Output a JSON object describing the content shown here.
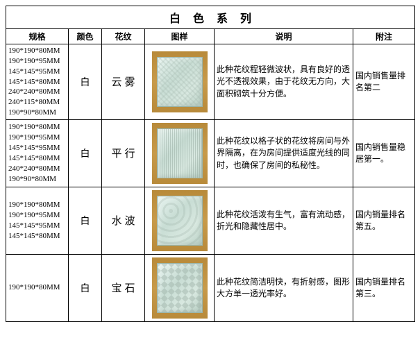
{
  "title": "白色系列",
  "headers": {
    "spec": "规格",
    "color": "颜色",
    "pattern": "花纹",
    "image": "图样",
    "desc": "说明",
    "note": "附注"
  },
  "colWidths": {
    "spec": 90,
    "color": 48,
    "pattern": 62,
    "image": 100,
    "desc": 200,
    "note": 89
  },
  "rows": [
    {
      "specs": "190*190*80MM\n190*190*95MM\n145*145*95MM\n145*145*80MM\n240*240*80MM\n240*115*80MM\n190*90*80MM",
      "color": "白",
      "pattern": "云雾",
      "patternClass": "pattern-cloud",
      "desc": "此种花纹程轻微波状，具有良好的透光不透视效果，由于花纹无方向，大面积砌筑十分方便。",
      "note": "国内销售量排名第二"
    },
    {
      "specs": "190*190*80MM\n190*190*95MM\n145*145*95MM\n145*145*80MM\n240*240*80MM\n190*90*80MM",
      "color": "白",
      "pattern": "平行",
      "patternClass": "pattern-lines",
      "desc": "此种花纹以格子状的花纹将房间与外界隔离，在为房间提供适度光线的同时，也确保了房间的私秘性。",
      "note": "国内销售量稳居第一。"
    },
    {
      "specs": "190*190*80MM\n190*190*95MM\n145*145*95MM\n145*145*80MM",
      "color": "白",
      "pattern": "水波",
      "patternClass": "pattern-wave",
      "desc": "此种花纹活泼有生气，富有流动感，折光和隐藏性居中。",
      "note": "国内销量排名第五。"
    },
    {
      "specs": "190*190*80MM",
      "color": "白",
      "pattern": "宝石",
      "patternClass": "pattern-gem",
      "desc": "此种花纹简洁明快，有折射感，图形大方单一透光率好。",
      "note": "国内销量排名第三。"
    }
  ]
}
